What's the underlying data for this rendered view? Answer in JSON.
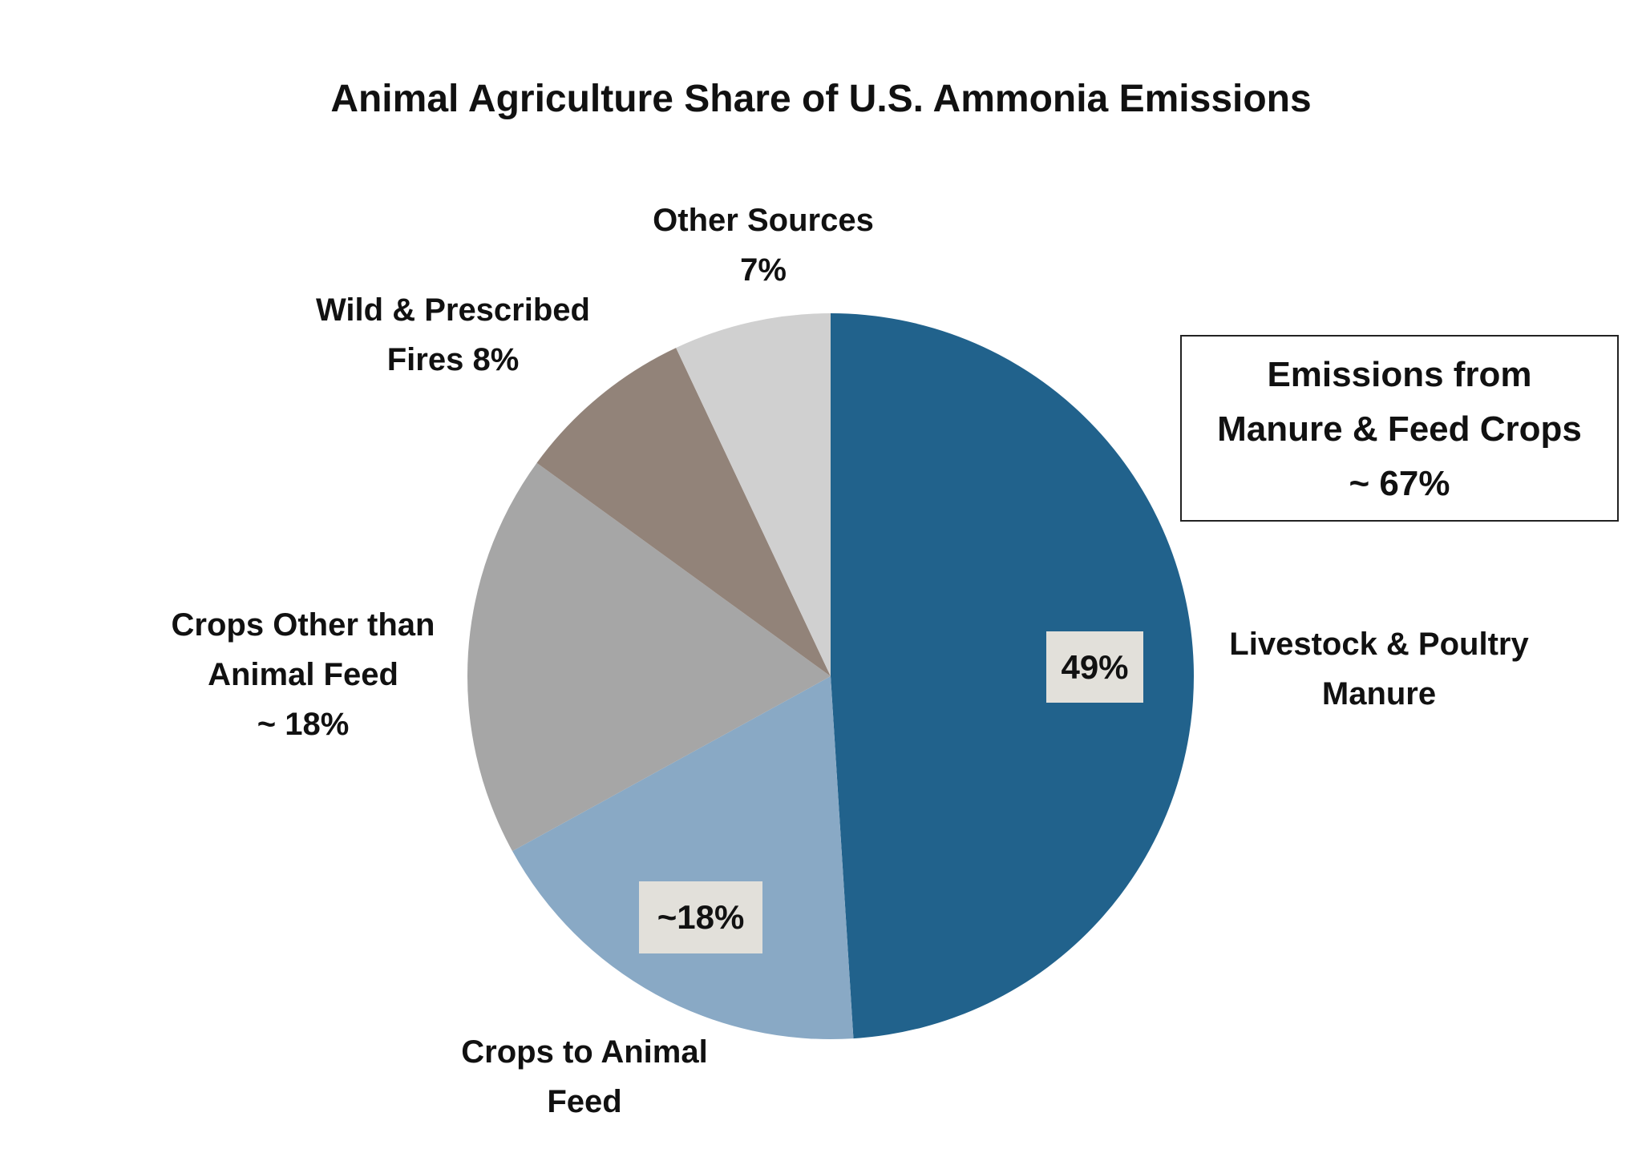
{
  "chart_data": {
    "type": "pie",
    "title": "Animal Agriculture Share of U.S. Ammonia Emissions",
    "categories": [
      "Livestock & Poultry Manure",
      "Crops to Animal Feed",
      "Crops Other than Animal Feed",
      "Wild & Prescribed Fires",
      "Other Sources"
    ],
    "values": [
      49,
      18,
      18,
      8,
      7
    ],
    "value_labels": [
      "49%",
      "~18%",
      "~ 18%",
      "8%",
      "7%"
    ],
    "colors": [
      "#21628c",
      "#89a9c5",
      "#a6a6a6",
      "#928379",
      "#d0d0d0"
    ],
    "annotation": [
      "Emissions from",
      "Manure & Feed Crops",
      "~ 67%"
    ]
  }
}
